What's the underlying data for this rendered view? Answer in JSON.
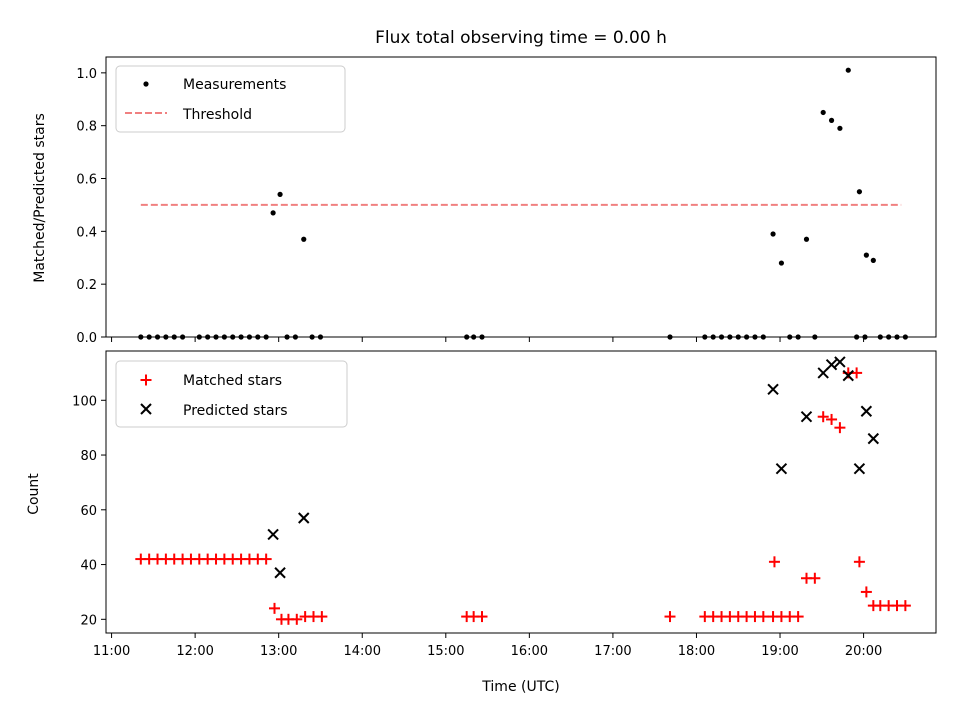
{
  "chart_data": [
    {
      "type": "scatter",
      "title": "Flux total observing time = 0.00 h",
      "ylabel": "Matched/Predicted stars",
      "xlabel": "",
      "xlim": [
        "10:56",
        "20:52"
      ],
      "ylim": [
        0,
        1.06
      ],
      "yticks": [
        0.0,
        0.2,
        0.4,
        0.6,
        0.8,
        1.0
      ],
      "ytick_labels": [
        "0.0",
        "0.2",
        "0.4",
        "0.6",
        "0.8",
        "1.0"
      ],
      "legend_position": "upper-left",
      "series": [
        {
          "name": "Measurements",
          "kind": "dots",
          "color": "#000000",
          "points": [
            [
              "11:21",
              0
            ],
            [
              "11:27",
              0
            ],
            [
              "11:33",
              0
            ],
            [
              "11:39",
              0
            ],
            [
              "11:45",
              0
            ],
            [
              "11:51",
              0
            ],
            [
              "12:03",
              0
            ],
            [
              "12:09",
              0
            ],
            [
              "12:15",
              0
            ],
            [
              "12:21",
              0
            ],
            [
              "12:27",
              0
            ],
            [
              "12:33",
              0
            ],
            [
              "12:39",
              0
            ],
            [
              "12:45",
              0
            ],
            [
              "12:51",
              0
            ],
            [
              "12:56",
              0.47
            ],
            [
              "13:01",
              0.54
            ],
            [
              "13:06",
              0
            ],
            [
              "13:12",
              0
            ],
            [
              "13:18",
              0.37
            ],
            [
              "13:24",
              0
            ],
            [
              "13:30",
              0
            ],
            [
              "15:15",
              0
            ],
            [
              "15:20",
              0
            ],
            [
              "15:26",
              0
            ],
            [
              "17:41",
              0
            ],
            [
              "18:06",
              0
            ],
            [
              "18:12",
              0
            ],
            [
              "18:18",
              0
            ],
            [
              "18:24",
              0
            ],
            [
              "18:30",
              0
            ],
            [
              "18:36",
              0
            ],
            [
              "18:42",
              0
            ],
            [
              "18:48",
              0
            ],
            [
              "18:55",
              0.39
            ],
            [
              "19:01",
              0.28
            ],
            [
              "19:07",
              0
            ],
            [
              "19:13",
              0
            ],
            [
              "19:19",
              0.37
            ],
            [
              "19:25",
              0
            ],
            [
              "19:31",
              0.85
            ],
            [
              "19:37",
              0.82
            ],
            [
              "19:43",
              0.79
            ],
            [
              "19:49",
              1.01
            ],
            [
              "19:55",
              0
            ],
            [
              "20:01",
              0
            ],
            [
              "19:57",
              0.55
            ],
            [
              "20:02",
              0.31
            ],
            [
              "20:07",
              0.29
            ],
            [
              "20:12",
              0
            ],
            [
              "20:18",
              0
            ],
            [
              "20:24",
              0
            ],
            [
              "20:30",
              0
            ]
          ]
        },
        {
          "name": "Threshold",
          "kind": "dashed-line",
          "color": "#f08080",
          "x": [
            "11:21",
            "20:27"
          ],
          "y": [
            0.5,
            0.5
          ]
        }
      ]
    },
    {
      "type": "scatter",
      "title": "",
      "ylabel": "Count",
      "xlabel": "Time (UTC)",
      "xlim": [
        "10:56",
        "20:52"
      ],
      "ylim": [
        15,
        118
      ],
      "yticks": [
        20,
        40,
        60,
        80,
        100
      ],
      "ytick_labels": [
        "20",
        "40",
        "60",
        "80",
        "100"
      ],
      "xticks": [
        "11:00",
        "12:00",
        "13:00",
        "14:00",
        "15:00",
        "16:00",
        "17:00",
        "18:00",
        "19:00",
        "20:00"
      ],
      "xtick_labels": [
        "11:00",
        "12:00",
        "13:00",
        "14:00",
        "15:00",
        "16:00",
        "17:00",
        "18:00",
        "19:00",
        "20:00"
      ],
      "legend_position": "upper-left",
      "series": [
        {
          "name": "Matched stars",
          "kind": "plus",
          "color": "#ff0000",
          "points": [
            [
              "11:21",
              42
            ],
            [
              "11:27",
              42
            ],
            [
              "11:33",
              42
            ],
            [
              "11:39",
              42
            ],
            [
              "11:45",
              42
            ],
            [
              "11:51",
              42
            ],
            [
              "11:57",
              42
            ],
            [
              "12:03",
              42
            ],
            [
              "12:09",
              42
            ],
            [
              "12:15",
              42
            ],
            [
              "12:21",
              42
            ],
            [
              "12:27",
              42
            ],
            [
              "12:33",
              42
            ],
            [
              "12:39",
              42
            ],
            [
              "12:45",
              42
            ],
            [
              "12:51",
              42
            ],
            [
              "12:57",
              24
            ],
            [
              "13:02",
              20
            ],
            [
              "13:07",
              20
            ],
            [
              "13:13",
              20
            ],
            [
              "13:19",
              21
            ],
            [
              "13:25",
              21
            ],
            [
              "13:31",
              21
            ],
            [
              "15:15",
              21
            ],
            [
              "15:20",
              21
            ],
            [
              "15:26",
              21
            ],
            [
              "17:41",
              21
            ],
            [
              "18:06",
              21
            ],
            [
              "18:12",
              21
            ],
            [
              "18:18",
              21
            ],
            [
              "18:24",
              21
            ],
            [
              "18:30",
              21
            ],
            [
              "18:36",
              21
            ],
            [
              "18:42",
              21
            ],
            [
              "18:48",
              21
            ],
            [
              "18:55",
              21
            ],
            [
              "18:56",
              41
            ],
            [
              "19:01",
              21
            ],
            [
              "19:07",
              21
            ],
            [
              "19:13",
              21
            ],
            [
              "19:19",
              35
            ],
            [
              "19:25",
              35
            ],
            [
              "19:31",
              94
            ],
            [
              "19:37",
              93
            ],
            [
              "19:43",
              90
            ],
            [
              "19:49",
              110
            ],
            [
              "19:55",
              110
            ],
            [
              "19:57",
              41
            ],
            [
              "20:02",
              30
            ],
            [
              "20:07",
              25
            ],
            [
              "20:12",
              25
            ],
            [
              "20:18",
              25
            ],
            [
              "20:24",
              25
            ],
            [
              "20:30",
              25
            ]
          ]
        },
        {
          "name": "Predicted stars",
          "kind": "cross",
          "color": "#000000",
          "points": [
            [
              "12:56",
              51
            ],
            [
              "13:01",
              37
            ],
            [
              "13:18",
              57
            ],
            [
              "18:55",
              104
            ],
            [
              "19:01",
              75
            ],
            [
              "19:19",
              94
            ],
            [
              "19:31",
              110
            ],
            [
              "19:37",
              113
            ],
            [
              "19:43",
              114
            ],
            [
              "19:49",
              109
            ],
            [
              "19:57",
              75
            ],
            [
              "20:02",
              96
            ],
            [
              "20:07",
              86
            ]
          ]
        }
      ]
    }
  ]
}
